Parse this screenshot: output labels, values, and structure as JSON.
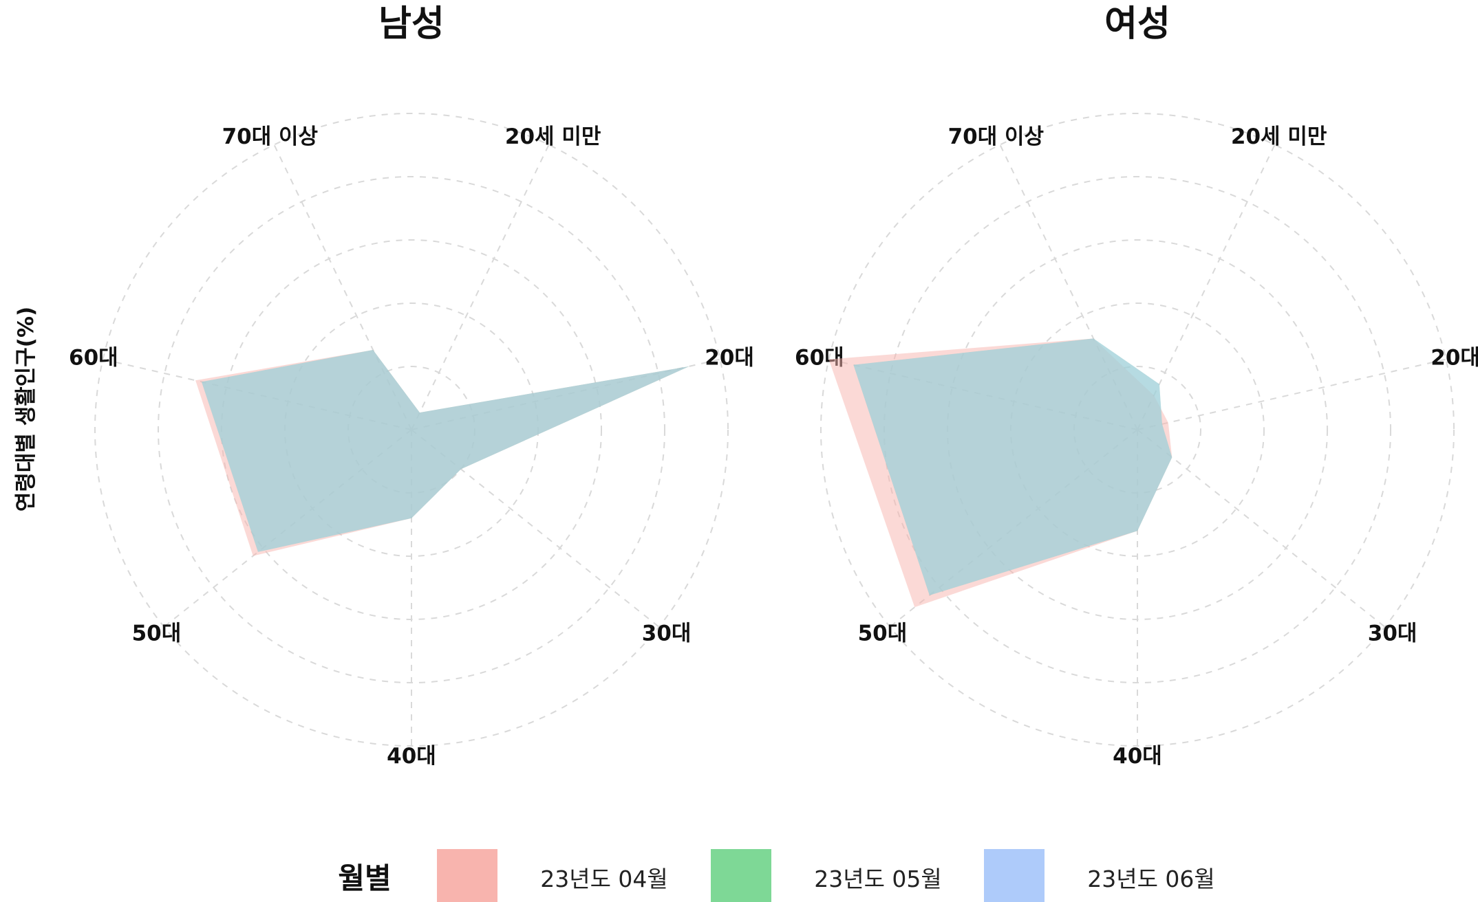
{
  "chart_data": {
    "type": "radar",
    "ylabel": "연령대별 생활인구(%)",
    "axes": [
      "20세 미만",
      "20대",
      "30대",
      "40대",
      "50대",
      "60대",
      "70대 이상"
    ],
    "legend": {
      "title": "월별",
      "placement": "bottom",
      "entries": [
        {
          "name": "23년도 04월",
          "color": "#F8B4AE"
        },
        {
          "name": "23년도 05월",
          "color": "#7ED896"
        },
        {
          "name": "23년도 06월",
          "color": "#AECBFA"
        }
      ]
    },
    "rmax": 5,
    "grid": true,
    "rings": 5,
    "panels": [
      {
        "title": "남성",
        "series": [
          {
            "name": "23년도 04월",
            "color": "#F8B4AE",
            "values": [
              0.3,
              4.5,
              1.0,
              1.4,
              3.2,
              3.5,
              1.4
            ]
          },
          {
            "name": "23년도 05월",
            "color": "#7ED896",
            "values": [
              0.3,
              4.5,
              1.0,
              1.4,
              3.1,
              3.4,
              1.4
            ]
          },
          {
            "name": "23년도 06월",
            "color": "#AECBFA",
            "values": [
              0.3,
              4.5,
              1.0,
              1.4,
              3.1,
              3.4,
              1.4
            ]
          }
        ]
      },
      {
        "title": "여성",
        "series": [
          {
            "name": "23년도 04월",
            "color": "#F8B4AE",
            "values": [
              0.6,
              0.5,
              0.7,
              1.6,
              4.5,
              5.0,
              1.6
            ]
          },
          {
            "name": "23년도 05월",
            "color": "#7ED896",
            "values": [
              0.8,
              0.4,
              0.7,
              1.6,
              4.2,
              4.6,
              1.6
            ]
          },
          {
            "name": "23년도 06월",
            "color": "#AECBFA",
            "values": [
              0.8,
              0.4,
              0.7,
              1.6,
              4.2,
              4.6,
              1.6
            ]
          }
        ]
      }
    ]
  }
}
